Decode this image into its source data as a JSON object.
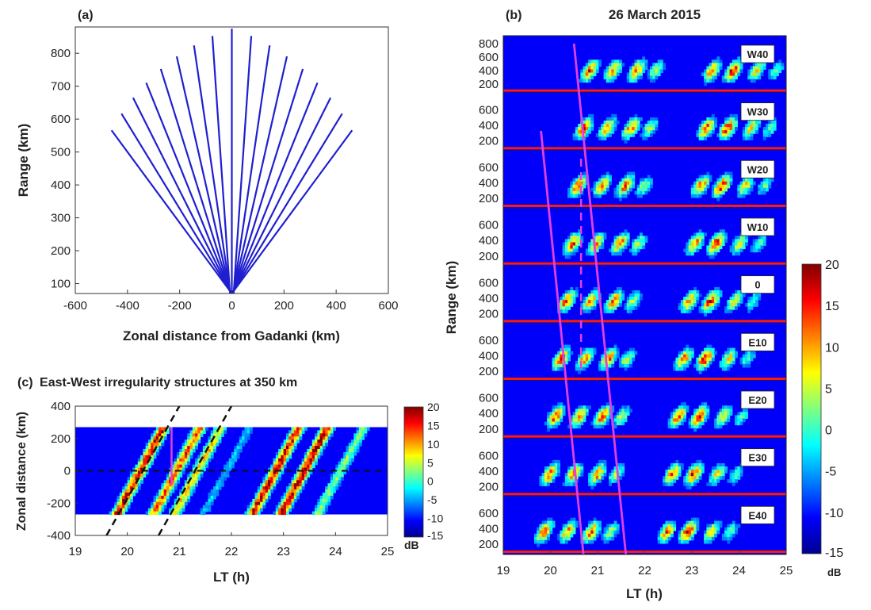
{
  "chart_data": [
    {
      "panel_label": "(a)",
      "type": "line",
      "xlabel": "Zonal distance from Gadanki (km)",
      "ylabel": "Range (km)",
      "xlim": [
        -600,
        600
      ],
      "ylim": [
        70,
        880
      ],
      "xticks": [
        -600,
        -400,
        -200,
        0,
        200,
        400,
        600
      ],
      "yticks": [
        100,
        200,
        300,
        400,
        500,
        600,
        700,
        800
      ],
      "line_color": "#1f1fd0",
      "beam_angles_deg": [
        -40,
        -35,
        -30,
        -25,
        -20,
        -15,
        -10,
        -5,
        0,
        5,
        10,
        15,
        20,
        25,
        30,
        35,
        40
      ],
      "beam_range_km": [
        70,
        875
      ]
    },
    {
      "panel_label": "(b)",
      "type": "heatmap",
      "title": "26 March 2015",
      "xlabel": "LT (h)",
      "ylabel": "Range (km)",
      "xlim": [
        19,
        25
      ],
      "xticks": [
        19,
        20,
        21,
        22,
        23,
        24,
        25
      ],
      "beams": [
        "W40",
        "W30",
        "W20",
        "W10",
        "0",
        "E10",
        "E20",
        "E30",
        "E40"
      ],
      "beam_yticks": [
        [
          200,
          400,
          600,
          800
        ],
        [
          200,
          400,
          600
        ],
        [
          200,
          400,
          600
        ],
        [
          200,
          400,
          600
        ],
        [
          200,
          400,
          600
        ],
        [
          200,
          400,
          600
        ],
        [
          200,
          400,
          600
        ],
        [
          200,
          400,
          600
        ],
        [
          200,
          400,
          600
        ]
      ],
      "colorbar_ticks": [
        -15,
        -10,
        -5,
        0,
        5,
        10,
        15,
        20
      ],
      "colorbar_unit": "dB",
      "clim": [
        -15,
        20
      ],
      "magenta_lines_LT": [
        [
          19.8,
          20.7
        ],
        [
          20.5,
          21.6
        ]
      ],
      "dashed_line_LT": 20.65
    },
    {
      "panel_label": "(c)",
      "type": "heatmap",
      "title": "East-West irregularity structures at 350 km",
      "xlabel": "LT (h)",
      "ylabel": "Zonal distance (km)",
      "xlim": [
        19,
        25
      ],
      "ylim": [
        -400,
        400
      ],
      "xticks": [
        19,
        20,
        21,
        22,
        23,
        24,
        25
      ],
      "yticks": [
        -400,
        -200,
        0,
        200,
        400
      ],
      "data_y_range": [
        -270,
        270
      ],
      "colorbar_ticks": [
        -15,
        -10,
        -5,
        0,
        5,
        10,
        15,
        20
      ],
      "colorbar_unit": "dB",
      "clim": [
        -15,
        20
      ],
      "dashed_lines_LT": [
        [
          [
            19.6,
            -400
          ],
          [
            21.0,
            400
          ]
        ],
        [
          [
            20.6,
            -400
          ],
          [
            22.0,
            400
          ]
        ]
      ],
      "magenta_line_LT": 20.85
    }
  ]
}
